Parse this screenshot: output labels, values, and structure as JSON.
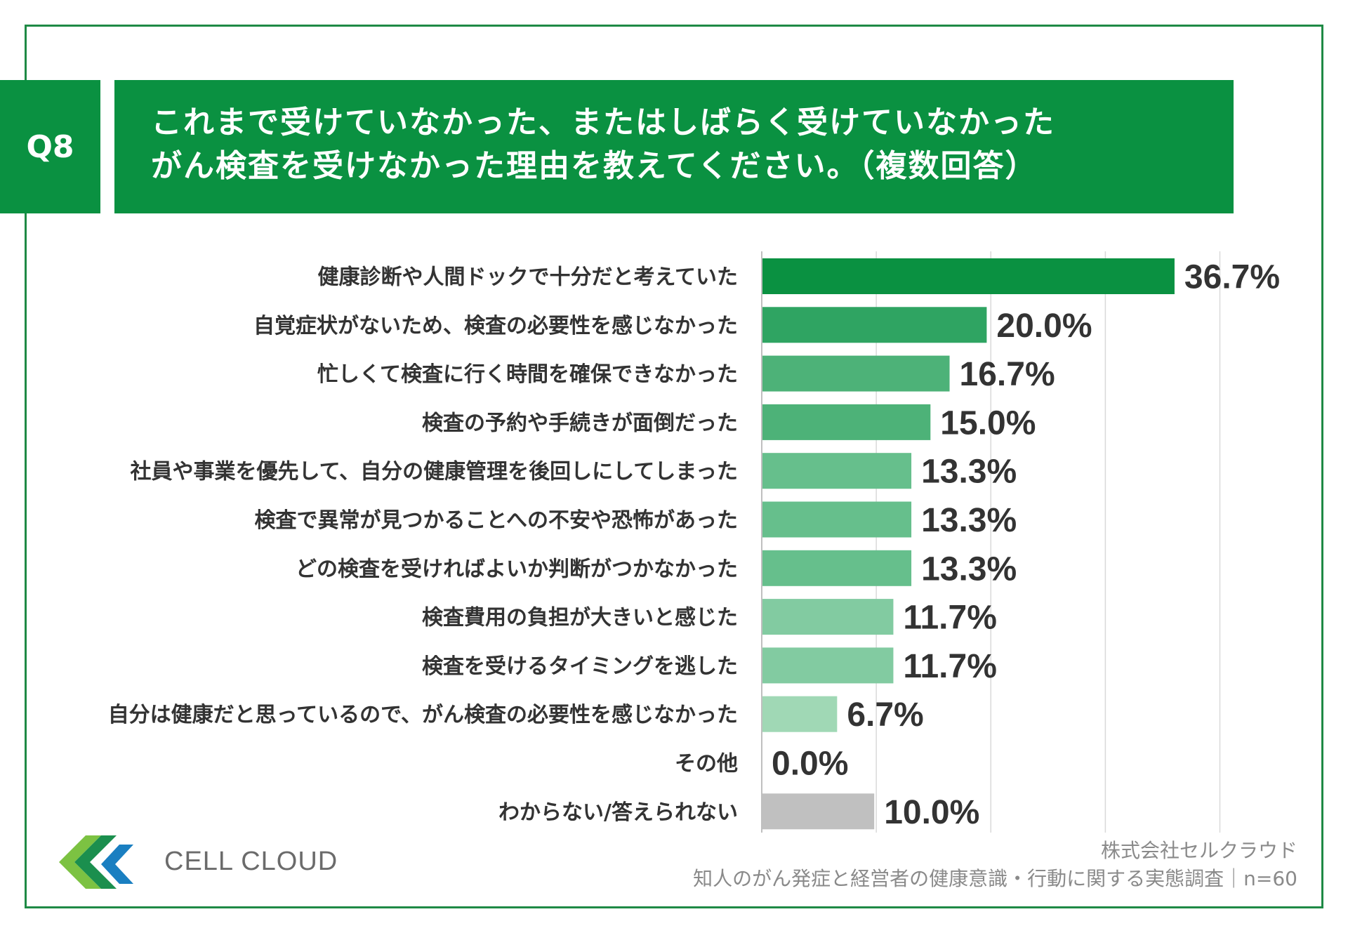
{
  "header": {
    "badge": "Q8",
    "title_line1": "これまで受けていなかった、またはしばらく受けていなかった",
    "title_line2": "がん検査を受けなかった理由を教えてください。（複数回答）"
  },
  "chart_data": {
    "type": "bar",
    "orientation": "horizontal",
    "title": "これまで受けていなかった、またはしばらく受けていなかったがん検査を受けなかった理由を教えてください。（複数回答）",
    "categories": [
      "健康診断や人間ドックで十分だと考えていた",
      "自覚症状がないため、検査の必要性を感じなかった",
      "忙しくて検査に行く時間を確保できなかった",
      "検査の予約や手続きが面倒だった",
      "社員や事業を優先して、自分の健康管理を後回しにしてしまった",
      "検査で異常が見つかることへの不安や恐怖があった",
      "どの検査を受ければよいか判断がつかなかった",
      "検査費用の負担が大きいと感じた",
      "検査を受けるタイミングを逃した",
      "自分は健康だと思っているので、がん検査の必要性を感じなかった",
      "その他",
      "わからない/答えられない"
    ],
    "values": [
      36.7,
      20.0,
      16.7,
      15.0,
      13.3,
      13.3,
      13.3,
      11.7,
      11.7,
      6.7,
      0.0,
      10.0
    ],
    "value_labels": [
      "36.7%",
      "20.0%",
      "16.7%",
      "15.0%",
      "13.3%",
      "13.3%",
      "13.3%",
      "11.7%",
      "11.7%",
      "6.7%",
      "0.0%",
      "10.0%"
    ],
    "xlim": [
      0,
      40
    ],
    "grid": true,
    "xlabel": "",
    "ylabel": "",
    "colors": [
      "#0a9141",
      "#2fa462",
      "#4db278",
      "#4db278",
      "#66bf8c",
      "#66bf8c",
      "#66bf8c",
      "#82cba1",
      "#82cba1",
      "#a0d8b5",
      "#a0d8b5",
      "#c0c0c0"
    ]
  },
  "footer": {
    "logo_text": "CELL CLOUD",
    "source_line1": "株式会社セルクラウド",
    "source_line2": "知人のがん発症と経営者の健康意識・行動に関する実態調査｜n=60"
  },
  "colors": {
    "brand_green": "#0a9141",
    "frame": "#1f8a45"
  }
}
